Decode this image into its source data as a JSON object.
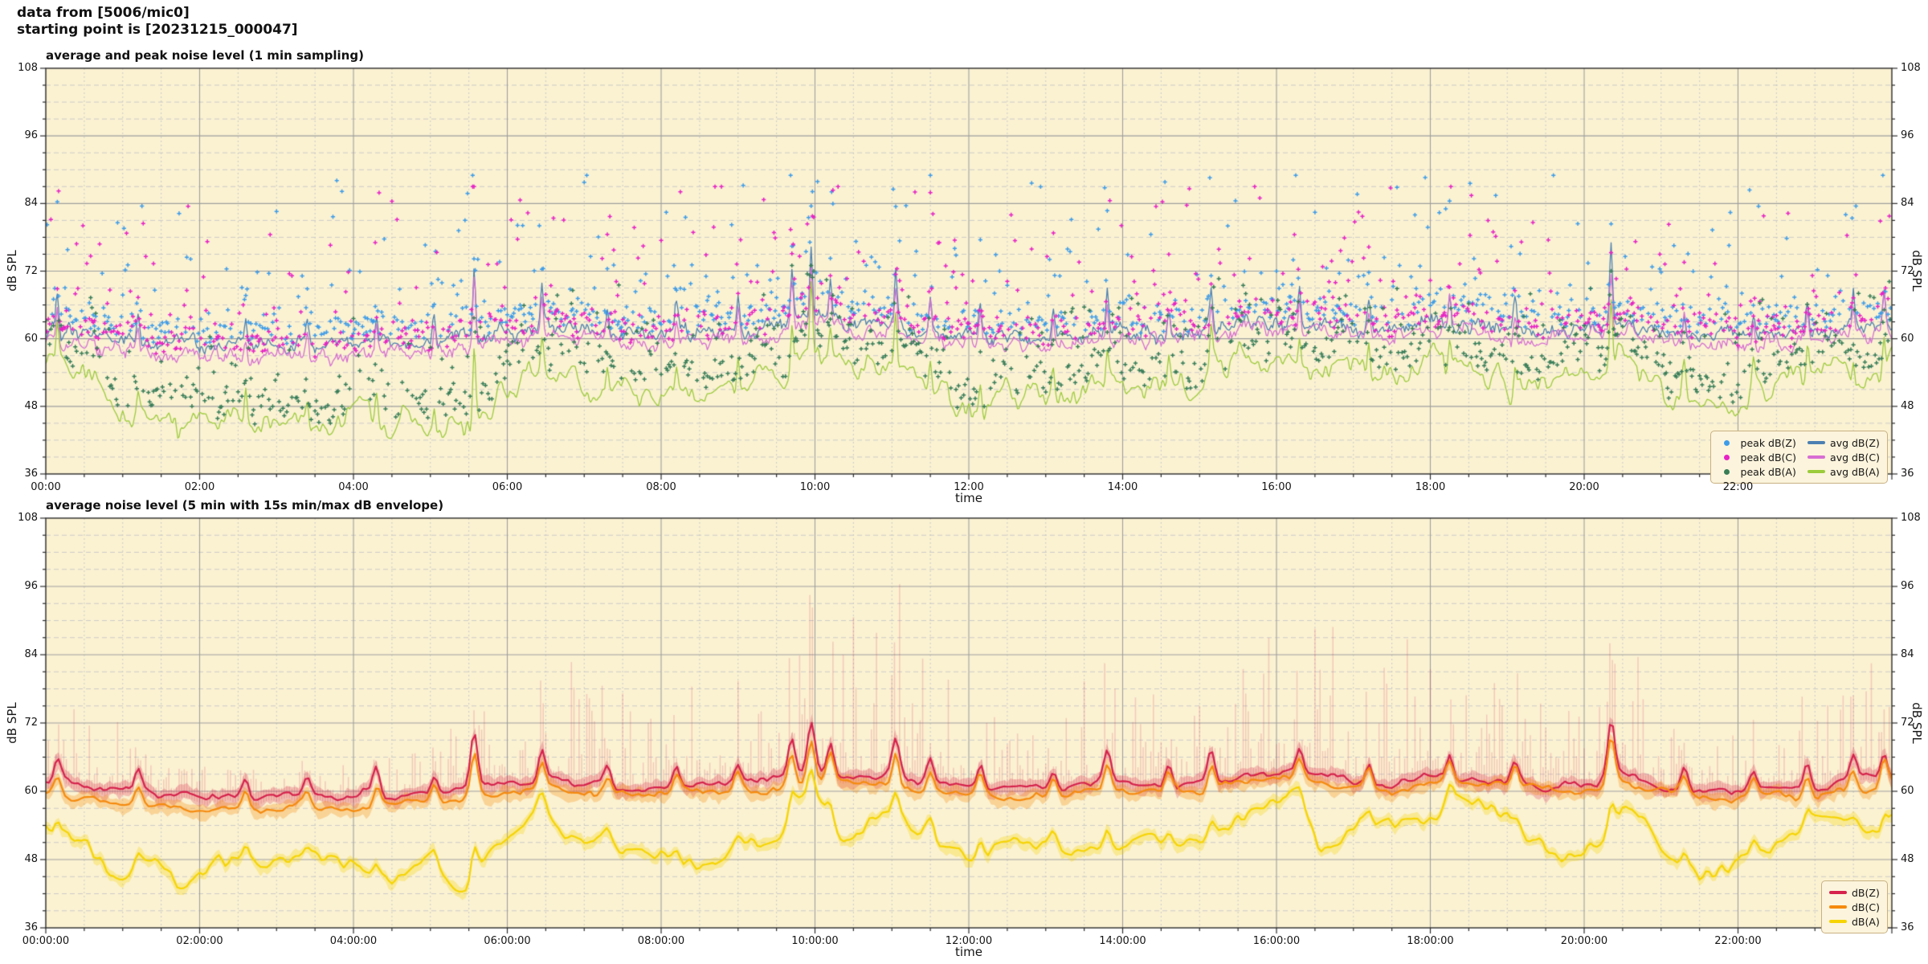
{
  "header": {
    "line1": "data from [5006/mic0]",
    "line2": "starting point is [20231215_000047]"
  },
  "colors": {
    "figure_bg": "#FFFFFF",
    "plot_bg": "#FBF2D2",
    "grid_major": "#9E9E9E",
    "grid_minor": "#C6C6C6",
    "spine": "#2A2A2A",
    "text": "#111111",
    "legend_bg": "#FCF4DC",
    "legend_border": "#C9B183",
    "avg_z": "#4C80B2",
    "avg_c": "#D76ED3",
    "avg_a": "#9CCB3B",
    "peak_z": "#3D9CE9",
    "peak_c": "#E820C6",
    "peak_a": "#377D58",
    "line_z2": "#D6224C",
    "line_c2": "#F58A0E",
    "line_a2": "#F6D403"
  },
  "chart_data": [
    {
      "type": "line+scatter",
      "title": "average and peak noise level (1 min sampling)",
      "xlabel": "time",
      "ylabel": "dB SPL",
      "ylim": [
        36,
        108
      ],
      "xlim_hours": [
        0,
        24
      ],
      "grid": {
        "major": "solid",
        "minor": "dashed",
        "y_major_step": 12,
        "y_minor_step": 3,
        "x_major_step_hours": 2,
        "x_minor_step_hours": 0.5
      },
      "yticks": [
        36,
        48,
        60,
        72,
        84,
        96,
        108
      ],
      "xticks": {
        "hours": [
          0,
          2,
          4,
          6,
          8,
          10,
          12,
          14,
          16,
          18,
          20,
          22
        ],
        "labels": [
          "00:00",
          "02:00",
          "04:00",
          "06:00",
          "08:00",
          "10:00",
          "12:00",
          "14:00",
          "16:00",
          "18:00",
          "20:00",
          "22:00"
        ]
      },
      "legend": {
        "position": "lower right",
        "columns": 2,
        "entries": [
          {
            "marker": "dot",
            "color_key": "peak_z",
            "label": "peak dB(Z)"
          },
          {
            "marker": "dot",
            "color_key": "peak_c",
            "label": "peak dB(C)"
          },
          {
            "marker": "dot",
            "color_key": "peak_a",
            "label": "peak dB(A)"
          },
          {
            "marker": "line",
            "color_key": "avg_z",
            "label": "avg dB(Z)"
          },
          {
            "marker": "line",
            "color_key": "avg_c",
            "label": "avg dB(C)"
          },
          {
            "marker": "line",
            "color_key": "avg_a",
            "label": "avg dB(A)"
          }
        ]
      },
      "anchor_step_hours": 0.5,
      "spike_sigma_hours": 0.018,
      "spikes": [
        {
          "t": 0.15,
          "a": 6
        },
        {
          "t": 1.2,
          "a": 5
        },
        {
          "t": 2.6,
          "a": 5
        },
        {
          "t": 3.4,
          "a": 4
        },
        {
          "t": 4.3,
          "a": 6
        },
        {
          "t": 5.05,
          "a": 5
        },
        {
          "t": 5.57,
          "a": 13
        },
        {
          "t": 6.45,
          "a": 7
        },
        {
          "t": 7.3,
          "a": 5
        },
        {
          "t": 8.2,
          "a": 5
        },
        {
          "t": 9.0,
          "a": 5
        },
        {
          "t": 9.7,
          "a": 9
        },
        {
          "t": 9.95,
          "a": 12
        },
        {
          "t": 10.2,
          "a": 7
        },
        {
          "t": 11.05,
          "a": 9
        },
        {
          "t": 11.5,
          "a": 6
        },
        {
          "t": 12.15,
          "a": 6
        },
        {
          "t": 13.1,
          "a": 5
        },
        {
          "t": 13.8,
          "a": 8
        },
        {
          "t": 14.6,
          "a": 5
        },
        {
          "t": 15.15,
          "a": 7
        },
        {
          "t": 16.3,
          "a": 6
        },
        {
          "t": 17.2,
          "a": 5
        },
        {
          "t": 18.25,
          "a": 6
        },
        {
          "t": 19.1,
          "a": 5
        },
        {
          "t": 20.35,
          "a": 13
        },
        {
          "t": 21.3,
          "a": 5
        },
        {
          "t": 22.2,
          "a": 5
        },
        {
          "t": 22.9,
          "a": 6
        },
        {
          "t": 23.5,
          "a": 6
        },
        {
          "t": 23.9,
          "a": 7
        }
      ],
      "series": [
        {
          "name": "avg dB(Z)",
          "role": "line",
          "color_key": "avg_z",
          "width": 1.3,
          "seed": 101,
          "spike_gain": 1.0,
          "noise": [
            [
              0.1,
              1.3
            ],
            [
              0.022,
              0.9
            ]
          ],
          "anchors_db": [
            61.5,
            61,
            60,
            59.5,
            59.5,
            59,
            59,
            59,
            59.5,
            59.5,
            59.5,
            60.5,
            61,
            62.5,
            61.5,
            61,
            61,
            61,
            61,
            62,
            64,
            62.5,
            63,
            61.5,
            60.5,
            60.5,
            60.5,
            61,
            61.5,
            61,
            61.5,
            62.5,
            63,
            62.5,
            62,
            61.5,
            62.5,
            62.5,
            61.5,
            61,
            61.5,
            63,
            61,
            60.5,
            60.5,
            60.5,
            61,
            61.5,
            62.5
          ]
        },
        {
          "name": "avg dB(C)",
          "role": "line",
          "color_key": "avg_c",
          "width": 1.3,
          "seed": 202,
          "spike_gain": 0.88,
          "noise": [
            [
              0.1,
              1.3
            ],
            [
              0.022,
              0.9
            ]
          ],
          "anchors_db": [
            59.5,
            59,
            58,
            57.5,
            57.5,
            57,
            57,
            57,
            57.5,
            57.5,
            57.5,
            58.5,
            59.5,
            61,
            60,
            59.5,
            59.5,
            59.5,
            59.5,
            60.5,
            62.5,
            61,
            61.5,
            60,
            59,
            59,
            59,
            59.5,
            60,
            59.5,
            60,
            61.5,
            62,
            61.5,
            61,
            60.5,
            61.5,
            61.5,
            60.5,
            60,
            60.5,
            62,
            60,
            59.5,
            59,
            59,
            59.5,
            60,
            61.5
          ]
        },
        {
          "name": "avg dB(A)",
          "role": "line",
          "color_key": "avg_a",
          "width": 1.3,
          "seed": 303,
          "spike_gain": 0.9,
          "noise": [
            [
              0.16,
              2.6
            ],
            [
              0.04,
              1.4
            ]
          ],
          "anchors_db": [
            57,
            53,
            47,
            45.5,
            45,
            44.5,
            45.5,
            46,
            46.5,
            46,
            45,
            46,
            51,
            55,
            52,
            50,
            51,
            50,
            51,
            54,
            58,
            53,
            55,
            51,
            48,
            50,
            50,
            51,
            52,
            50,
            53,
            57,
            57,
            54,
            53,
            52,
            56,
            55,
            52,
            50,
            54,
            57,
            50,
            48,
            49,
            52,
            55,
            52,
            57
          ]
        },
        {
          "name": "peak dB(Z)",
          "role": "scatter",
          "color_key": "peak_z",
          "base_index": 0,
          "seed": 11,
          "step_hours": 0.0166667,
          "keep_prob": 0.58,
          "offset": [
            0.8,
            3.5
          ],
          "tail": [
            7,
            26
          ],
          "max_db": 89
        },
        {
          "name": "peak dB(C)",
          "role": "scatter",
          "color_key": "peak_c",
          "base_index": 1,
          "seed": 22,
          "step_hours": 0.0166667,
          "keep_prob": 0.58,
          "offset": [
            0.8,
            3.5
          ],
          "tail": [
            7,
            25
          ],
          "max_db": 87
        },
        {
          "name": "peak dB(A)",
          "role": "scatter",
          "color_key": "peak_a",
          "base_index": 2,
          "seed": 33,
          "step_hours": 0.0166667,
          "keep_prob": 0.58,
          "offset": [
            1.2,
            4.0
          ],
          "tail": [
            6,
            13
          ],
          "max_db": 73
        }
      ]
    },
    {
      "type": "line+band",
      "title": "average noise level (5 min with 15s min/max dB envelope)",
      "xlabel": "time",
      "ylabel": "dB SPL",
      "ylim": [
        36,
        108
      ],
      "xlim_hours": [
        0,
        24
      ],
      "grid": {
        "major": "solid",
        "minor": "dashed",
        "y_major_step": 12,
        "y_minor_step": 3,
        "x_major_step_hours": 2,
        "x_minor_step_hours": 0.5
      },
      "yticks": [
        36,
        48,
        60,
        72,
        84,
        96,
        108
      ],
      "xticks": {
        "hours": [
          0,
          2,
          4,
          6,
          8,
          10,
          12,
          14,
          16,
          18,
          20,
          22
        ],
        "labels": [
          "00:00:00",
          "02:00:00",
          "04:00:00",
          "06:00:00",
          "08:00:00",
          "10:00:00",
          "12:00:00",
          "14:00:00",
          "16:00:00",
          "18:00:00",
          "20:00:00",
          "22:00:00"
        ]
      },
      "legend": {
        "position": "lower right",
        "columns": 1,
        "entries": [
          {
            "marker": "line",
            "color_key": "line_z2",
            "label": "dB(Z)"
          },
          {
            "marker": "line",
            "color_key": "line_c2",
            "label": "dB(C)"
          },
          {
            "marker": "line",
            "color_key": "line_a2",
            "label": "dB(A)"
          }
        ]
      },
      "anchor_step_hours": 0.5,
      "spike_sigma_hours": 0.045,
      "spikes_gain_global": 0.72,
      "series": [
        {
          "name": "dB(Z)",
          "role": "line",
          "color_key": "line_z2",
          "width": 2.2,
          "seed": 404,
          "spike_gain": 1.0,
          "noise": [
            [
              0.3,
              0.9
            ],
            [
              0.07,
              0.5
            ]
          ],
          "band": {
            "up": 1.2,
            "lo": 1.6,
            "alpha": 0.25
          },
          "env_spikes": {
            "base": 1.0,
            "pow": 2.8,
            "amp": 26,
            "alpha": 0.2,
            "mod_ref": 58.5,
            "mod_span": 3.5,
            "mod_min": 0.25,
            "mod_max": 1.5
          },
          "anchors_db": [
            61.5,
            61,
            60,
            59.5,
            59.5,
            59,
            59,
            59,
            59.5,
            59.5,
            59.5,
            60.5,
            61,
            62.5,
            61.5,
            61,
            61,
            61,
            61,
            62,
            64,
            62.5,
            63,
            61.5,
            60.5,
            60.5,
            60.5,
            61,
            61.5,
            61,
            61.5,
            62.5,
            63,
            62.5,
            62,
            61.5,
            62.5,
            62.5,
            61.5,
            61,
            61.5,
            63,
            61,
            60.5,
            60.5,
            60.5,
            61,
            61.5,
            62.5
          ]
        },
        {
          "name": "dB(C)",
          "role": "line",
          "color_key": "line_c2",
          "width": 2.2,
          "seed": 505,
          "spike_gain": 0.85,
          "noise": [
            [
              0.3,
              0.9
            ],
            [
              0.07,
              0.5
            ]
          ],
          "band": {
            "up": 1.1,
            "lo": 1.4,
            "alpha": 0.3
          },
          "anchors_db": [
            59.5,
            59,
            58,
            57.5,
            57.5,
            57,
            57,
            57,
            57.5,
            57.5,
            57.5,
            58.5,
            59.5,
            61,
            60,
            59.5,
            59.5,
            59.5,
            59.5,
            60.5,
            62.5,
            61,
            61.5,
            60,
            59,
            59,
            59,
            59.5,
            60,
            59.5,
            60,
            61.5,
            62,
            61.5,
            61,
            60.5,
            61.5,
            61.5,
            60.5,
            60,
            60.5,
            62,
            60,
            59.5,
            59,
            59,
            59.5,
            60,
            61.5
          ]
        },
        {
          "name": "dB(A)",
          "role": "line",
          "color_key": "line_a2",
          "width": 2.2,
          "seed": 606,
          "spike_gain": 0.6,
          "noise": [
            [
              0.45,
              4.2
            ],
            [
              0.09,
              1.1
            ]
          ],
          "band": {
            "up": 1.0,
            "lo": 1.2,
            "alpha": 0.3
          },
          "anchors_db": [
            57,
            53,
            47,
            45.5,
            45,
            44.5,
            45.5,
            46,
            46.5,
            46,
            45,
            46,
            51,
            55,
            52,
            50,
            51,
            50,
            51,
            54,
            58,
            53,
            55,
            51,
            48,
            50,
            50,
            51,
            52,
            50,
            53,
            57,
            57,
            54,
            53,
            52,
            56,
            55,
            52,
            50,
            54,
            57,
            50,
            48,
            49,
            52,
            55,
            52,
            57
          ]
        }
      ]
    }
  ]
}
